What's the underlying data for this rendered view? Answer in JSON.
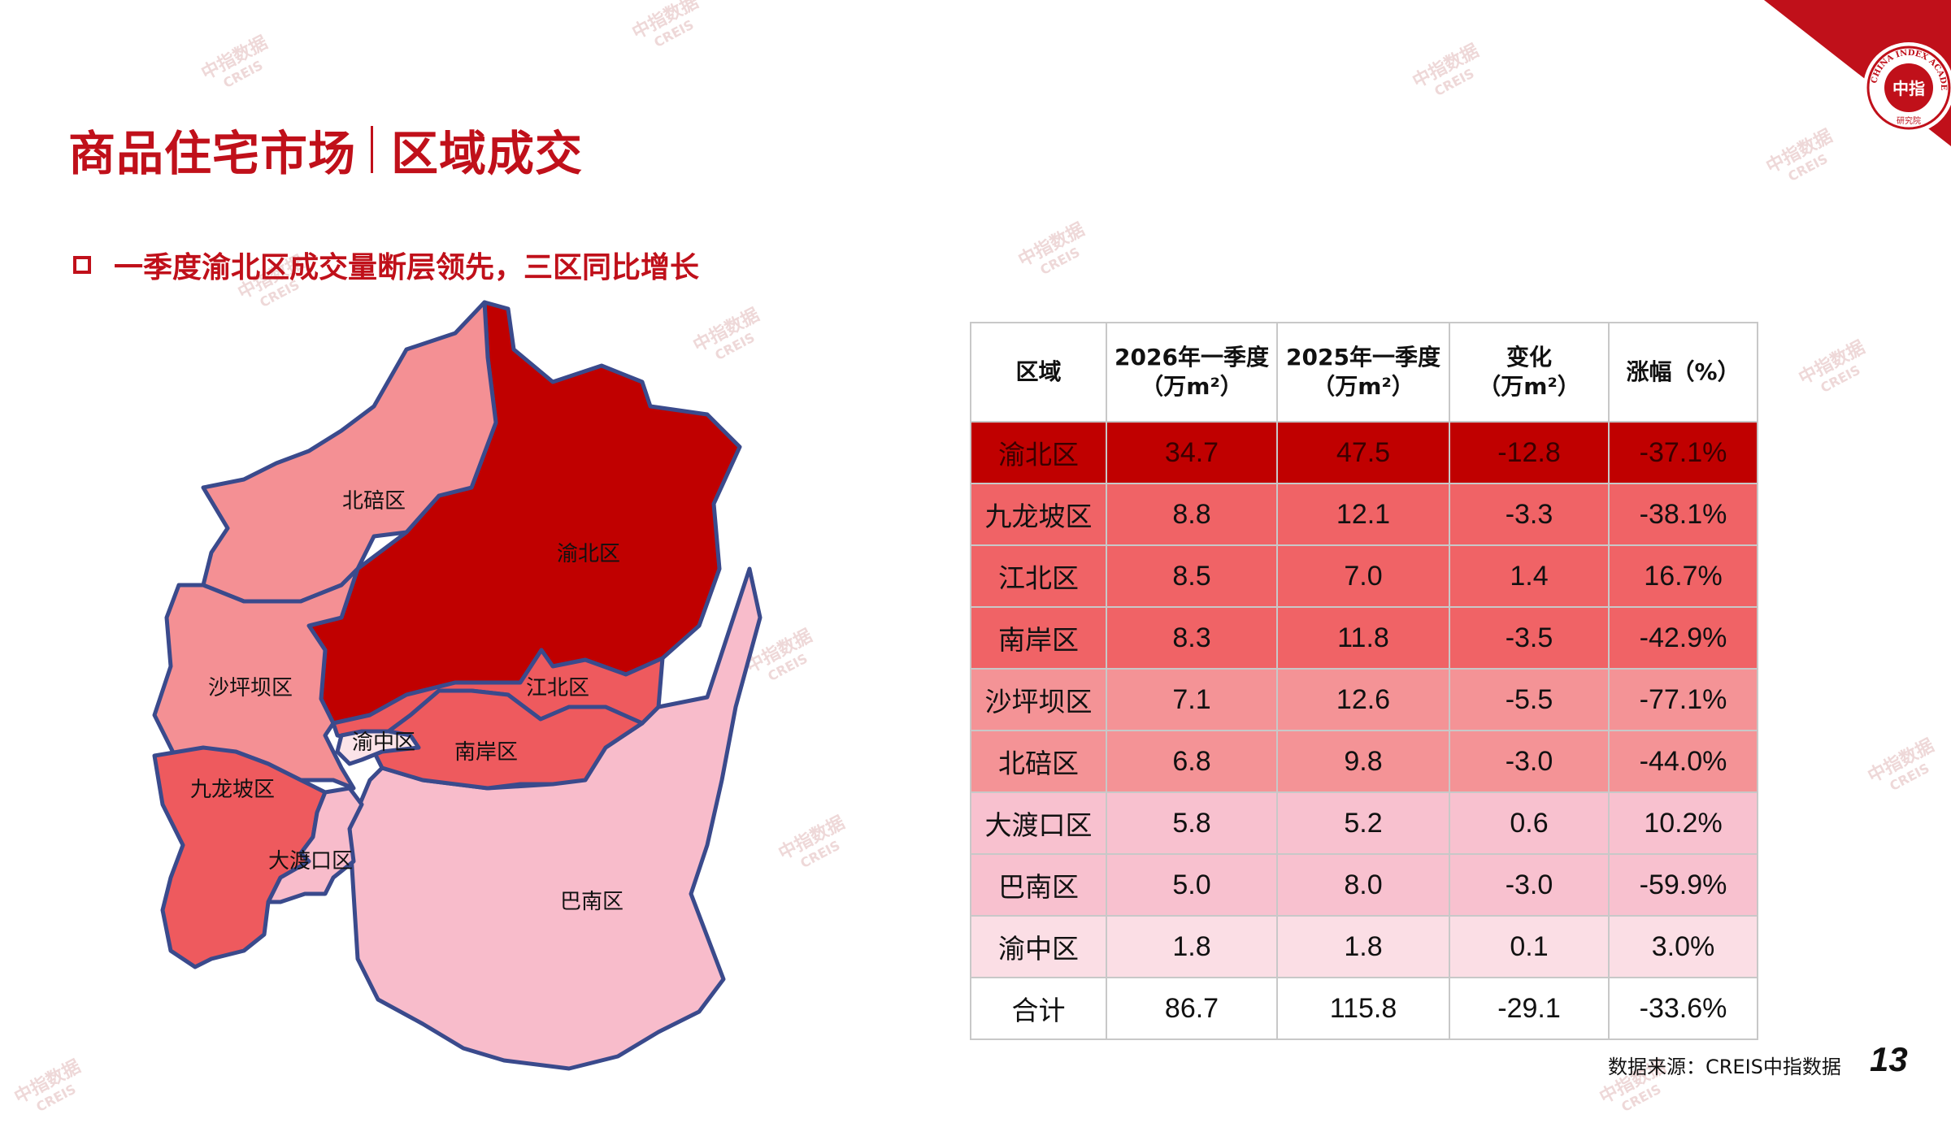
{
  "header": {
    "title_left": "商品住宅市场",
    "title_right": "区域成交",
    "subtitle": "一季度渝北区成交量断层领先，三区同比增长"
  },
  "logo": {
    "ring_text": "CHINA INDEX ACADEMY",
    "center_text": "中指",
    "bottom_text": "研究院"
  },
  "map": {
    "regions": [
      {
        "name": "渝北区",
        "color": "#c00000"
      },
      {
        "name": "北碚区",
        "color": "#f49094"
      },
      {
        "name": "沙坪坝区",
        "color": "#f49094"
      },
      {
        "name": "九龙坡区",
        "color": "#ee5a5e"
      },
      {
        "name": "江北区",
        "color": "#ee5a5e"
      },
      {
        "name": "南岸区",
        "color": "#ee5a5e"
      },
      {
        "name": "渝中区",
        "color": "#fbe3e8"
      },
      {
        "name": "大渡口区",
        "color": "#f8bccb"
      },
      {
        "name": "巴南区",
        "color": "#f8bccb"
      }
    ]
  },
  "table": {
    "headers": [
      {
        "line1": "区域",
        "line2": ""
      },
      {
        "line1": "2026年一季度",
        "line2": "（万m²）"
      },
      {
        "line1": "2025年一季度",
        "line2": "（万m²）"
      },
      {
        "line1": "变化",
        "line2": "（万m²）"
      },
      {
        "line1": "涨幅（%）",
        "line2": ""
      }
    ],
    "rows": [
      {
        "cells": [
          "渝北区",
          "34.7",
          "47.5",
          "-12.8",
          "-37.1%"
        ],
        "bg": "#c00000"
      },
      {
        "cells": [
          "九龙坡区",
          "8.8",
          "12.1",
          "-3.3",
          "-38.1%"
        ],
        "bg": "#f06366"
      },
      {
        "cells": [
          "江北区",
          "8.5",
          "7.0",
          "1.4",
          "16.7%"
        ],
        "bg": "#f06366"
      },
      {
        "cells": [
          "南岸区",
          "8.3",
          "11.8",
          "-3.5",
          "-42.9%"
        ],
        "bg": "#f06366"
      },
      {
        "cells": [
          "沙坪坝区",
          "7.1",
          "12.6",
          "-5.5",
          "-77.1%"
        ],
        "bg": "#f49396"
      },
      {
        "cells": [
          "北碚区",
          "6.8",
          "9.8",
          "-3.0",
          "-44.0%"
        ],
        "bg": "#f49396"
      },
      {
        "cells": [
          "大渡口区",
          "5.8",
          "5.2",
          "0.6",
          "10.2%"
        ],
        "bg": "#f8c1cf"
      },
      {
        "cells": [
          "巴南区",
          "5.0",
          "8.0",
          "-3.0",
          "-59.9%"
        ],
        "bg": "#f8c1cf"
      },
      {
        "cells": [
          "渝中区",
          "1.8",
          "1.8",
          "0.1",
          "3.0%"
        ],
        "bg": "#fbdee5"
      },
      {
        "cells": [
          "合计",
          "86.7",
          "115.8",
          "-29.1",
          "-33.6%"
        ],
        "bg": "#ffffff"
      }
    ]
  },
  "footer": {
    "source": "数据来源：CREIS中指数据",
    "page": "13"
  },
  "watermark": {
    "line1": "中指数据",
    "line2": "CREIS"
  },
  "colors": {
    "brand_red": "#c0101a",
    "map_border": "#3a4a8c"
  }
}
